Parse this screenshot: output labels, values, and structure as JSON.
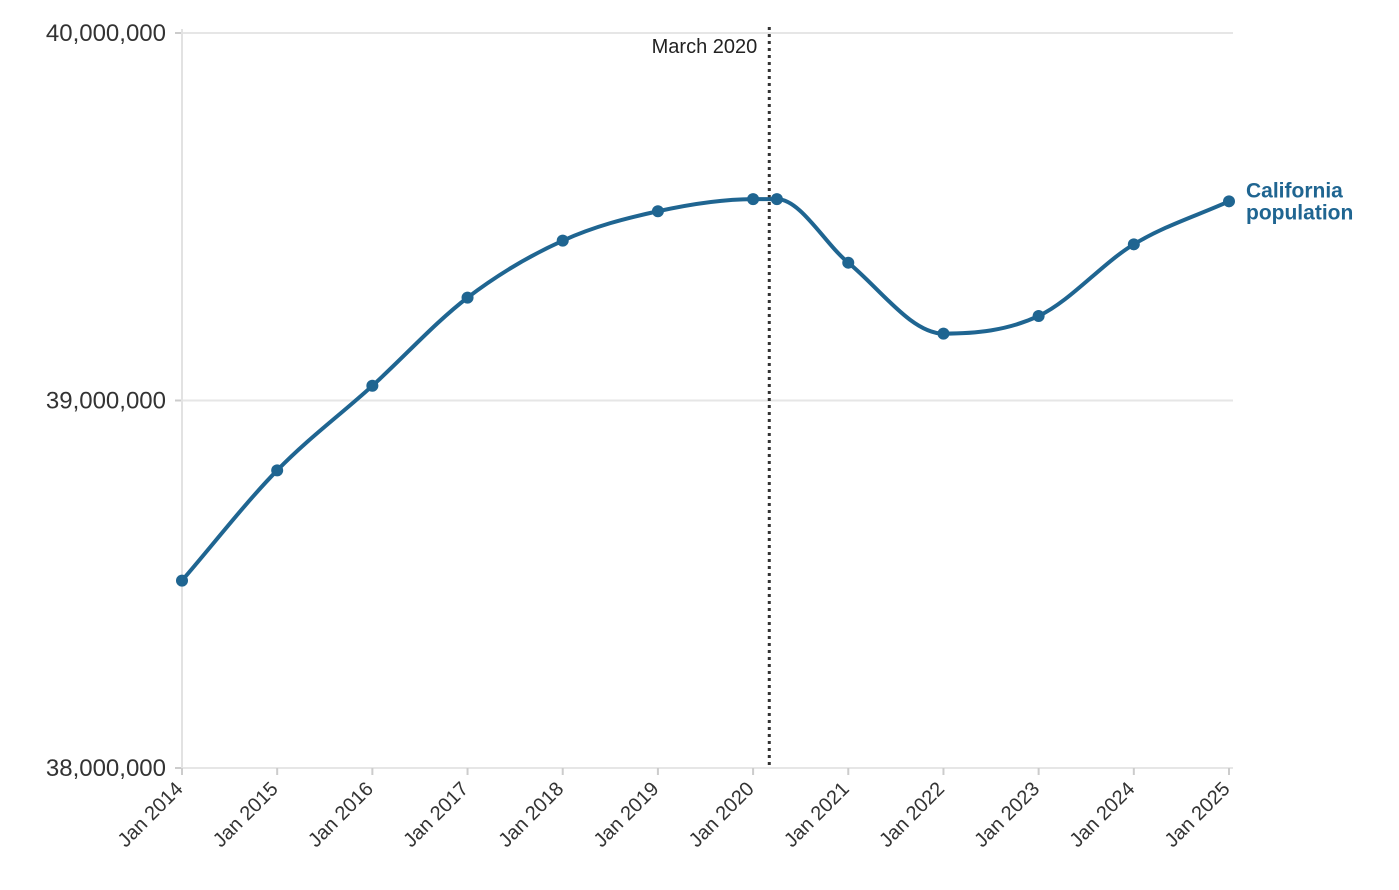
{
  "chart_data": {
    "type": "line",
    "title": "",
    "xlabel": "",
    "ylabel": "",
    "ylim": [
      38000000,
      40000000
    ],
    "y_ticks": [
      {
        "value": 38000000,
        "label": "38,000,000"
      },
      {
        "value": 39000000,
        "label": "39,000,000"
      },
      {
        "value": 40000000,
        "label": "40,000,000"
      }
    ],
    "x_ticks": [
      {
        "x": 2014.0,
        "label": "Jan 2014"
      },
      {
        "x": 2015.0,
        "label": "Jan 2015"
      },
      {
        "x": 2016.0,
        "label": "Jan 2016"
      },
      {
        "x": 2017.0,
        "label": "Jan 2017"
      },
      {
        "x": 2018.0,
        "label": "Jan 2018"
      },
      {
        "x": 2019.0,
        "label": "Jan 2019"
      },
      {
        "x": 2020.0,
        "label": "Jan 2020"
      },
      {
        "x": 2021.0,
        "label": "Jan 2021"
      },
      {
        "x": 2022.0,
        "label": "Jan 2022"
      },
      {
        "x": 2023.0,
        "label": "Jan 2023"
      },
      {
        "x": 2024.0,
        "label": "Jan 2024"
      },
      {
        "x": 2025.0,
        "label": "Jan 2025"
      }
    ],
    "xlim": [
      2014.0,
      2025.0
    ],
    "grid": true,
    "annotations": [
      {
        "type": "vline",
        "x": 2020.17,
        "label": "March 2020"
      }
    ],
    "series": [
      {
        "name": "California population",
        "color": "#1f6591",
        "points": [
          {
            "x": 2014.0,
            "y": 38510000
          },
          {
            "x": 2015.0,
            "y": 38810000
          },
          {
            "x": 2016.0,
            "y": 39040000
          },
          {
            "x": 2017.0,
            "y": 39280000
          },
          {
            "x": 2018.0,
            "y": 39435000
          },
          {
            "x": 2019.0,
            "y": 39515000
          },
          {
            "x": 2020.0,
            "y": 39548000
          },
          {
            "x": 2020.25,
            "y": 39548000
          },
          {
            "x": 2021.0,
            "y": 39375000
          },
          {
            "x": 2022.0,
            "y": 39182000
          },
          {
            "x": 2023.0,
            "y": 39230000
          },
          {
            "x": 2024.0,
            "y": 39425000
          },
          {
            "x": 2025.0,
            "y": 39542000
          }
        ]
      }
    ]
  }
}
